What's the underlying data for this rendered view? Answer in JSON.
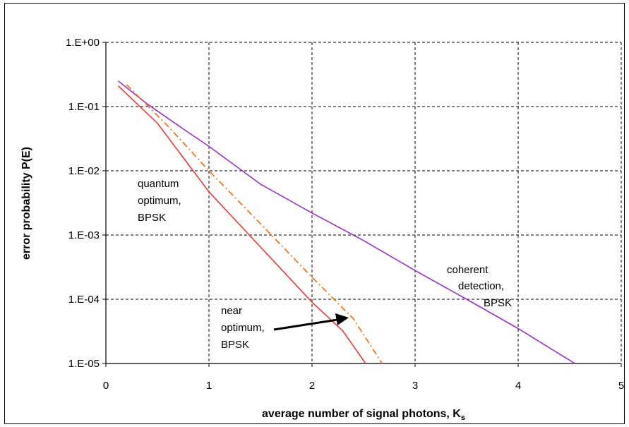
{
  "chart_data": {
    "type": "line",
    "xlabel": "average number of signal photons, K",
    "xlabel_subscript": "s",
    "ylabel": "error probability P(E)",
    "xlim": [
      0,
      5
    ],
    "ylim": [
      1e-05,
      1
    ],
    "y_scale": "log",
    "grid": true,
    "x_ticks": [
      "0",
      "1",
      "2",
      "3",
      "4",
      "5"
    ],
    "y_ticks": [
      "1.E-05",
      "1.E-04",
      "1.E-03",
      "1.E-02",
      "1.E-01",
      "1.E+00"
    ],
    "series": [
      {
        "key": "coherent",
        "color": "#9933CC",
        "style": "solid",
        "x": [
          0.12,
          0.4,
          0.75,
          1.0,
          1.5,
          2.0,
          2.5,
          3.0,
          3.5,
          4.0,
          4.55
        ],
        "y": [
          0.25,
          0.11,
          0.045,
          0.024,
          0.0062,
          0.0022,
          0.00082,
          0.00028,
          0.0001,
          3.5e-05,
          1e-05
        ]
      },
      {
        "key": "quantum",
        "color": "#FF3333",
        "style": "solid",
        "x": [
          0.12,
          0.5,
          1.0,
          1.5,
          2.0,
          2.3,
          2.52
        ],
        "y": [
          0.21,
          0.055,
          0.0047,
          0.00065,
          9e-05,
          3.2e-05,
          1e-05
        ]
      },
      {
        "key": "near",
        "color": "#FF6600",
        "style": "dashdot",
        "x": [
          0.2,
          0.6,
          1.0,
          1.5,
          2.0,
          2.4,
          2.68
        ],
        "y": [
          0.22,
          0.05,
          0.01,
          0.0015,
          0.00022,
          5e-05,
          1e-05
        ]
      }
    ],
    "annotations": [
      {
        "key": "quantum",
        "lines": [
          "quantum",
          "optimum,",
          "BPSK"
        ]
      },
      {
        "key": "coherent",
        "lines": [
          "coherent",
          "detection,",
          "BPSK"
        ]
      },
      {
        "key": "near",
        "lines": [
          "near",
          "optimum,",
          "BPSK"
        ]
      }
    ]
  }
}
